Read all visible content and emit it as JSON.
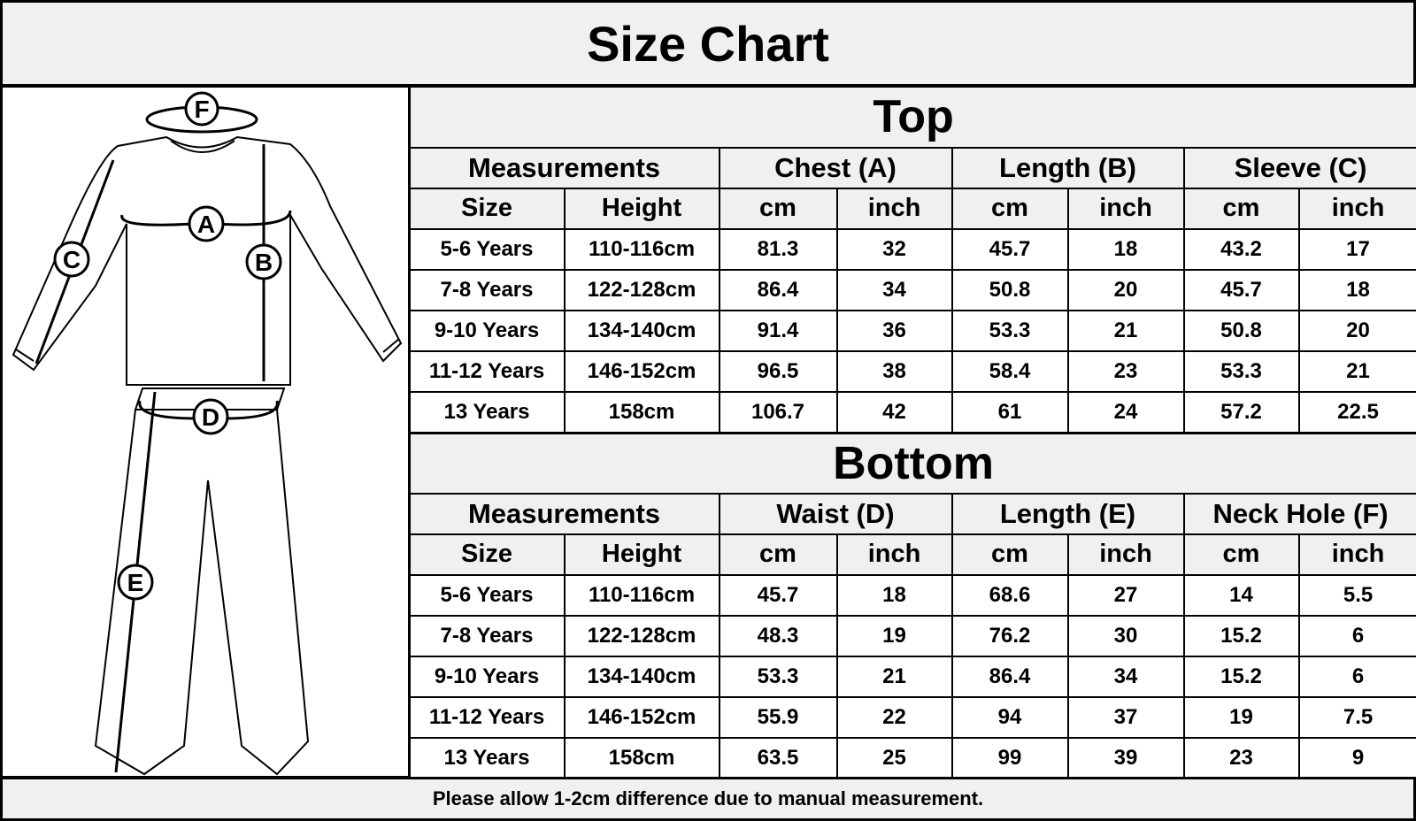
{
  "title": "Size Chart",
  "diagram_labels": [
    "A",
    "B",
    "C",
    "D",
    "E",
    "F"
  ],
  "top": {
    "heading": "Top",
    "groups": [
      "Measurements",
      "Chest (A)",
      "Length (B)",
      "Sleeve (C)"
    ],
    "subheaders": [
      "Size",
      "Height",
      "cm",
      "inch",
      "cm",
      "inch",
      "cm",
      "inch"
    ],
    "rows": [
      [
        "5-6 Years",
        "110-116cm",
        "81.3",
        "32",
        "45.7",
        "18",
        "43.2",
        "17"
      ],
      [
        "7-8 Years",
        "122-128cm",
        "86.4",
        "34",
        "50.8",
        "20",
        "45.7",
        "18"
      ],
      [
        "9-10 Years",
        "134-140cm",
        "91.4",
        "36",
        "53.3",
        "21",
        "50.8",
        "20"
      ],
      [
        "11-12 Years",
        "146-152cm",
        "96.5",
        "38",
        "58.4",
        "23",
        "53.3",
        "21"
      ],
      [
        "13 Years",
        "158cm",
        "106.7",
        "42",
        "61",
        "24",
        "57.2",
        "22.5"
      ]
    ]
  },
  "bottom": {
    "heading": "Bottom",
    "groups": [
      "Measurements",
      "Waist (D)",
      "Length (E)",
      "Neck Hole (F)"
    ],
    "subheaders": [
      "Size",
      "Height",
      "cm",
      "inch",
      "cm",
      "inch",
      "cm",
      "inch"
    ],
    "rows": [
      [
        "5-6 Years",
        "110-116cm",
        "45.7",
        "18",
        "68.6",
        "27",
        "14",
        "5.5"
      ],
      [
        "7-8 Years",
        "122-128cm",
        "48.3",
        "19",
        "76.2",
        "30",
        "15.2",
        "6"
      ],
      [
        "9-10 Years",
        "134-140cm",
        "53.3",
        "21",
        "86.4",
        "34",
        "15.2",
        "6"
      ],
      [
        "11-12 Years",
        "146-152cm",
        "55.9",
        "22",
        "94",
        "37",
        "19",
        "7.5"
      ],
      [
        "13 Years",
        "158cm",
        "63.5",
        "25",
        "99",
        "39",
        "23",
        "9"
      ]
    ]
  },
  "footer": "Please allow 1-2cm difference due to manual measurement."
}
